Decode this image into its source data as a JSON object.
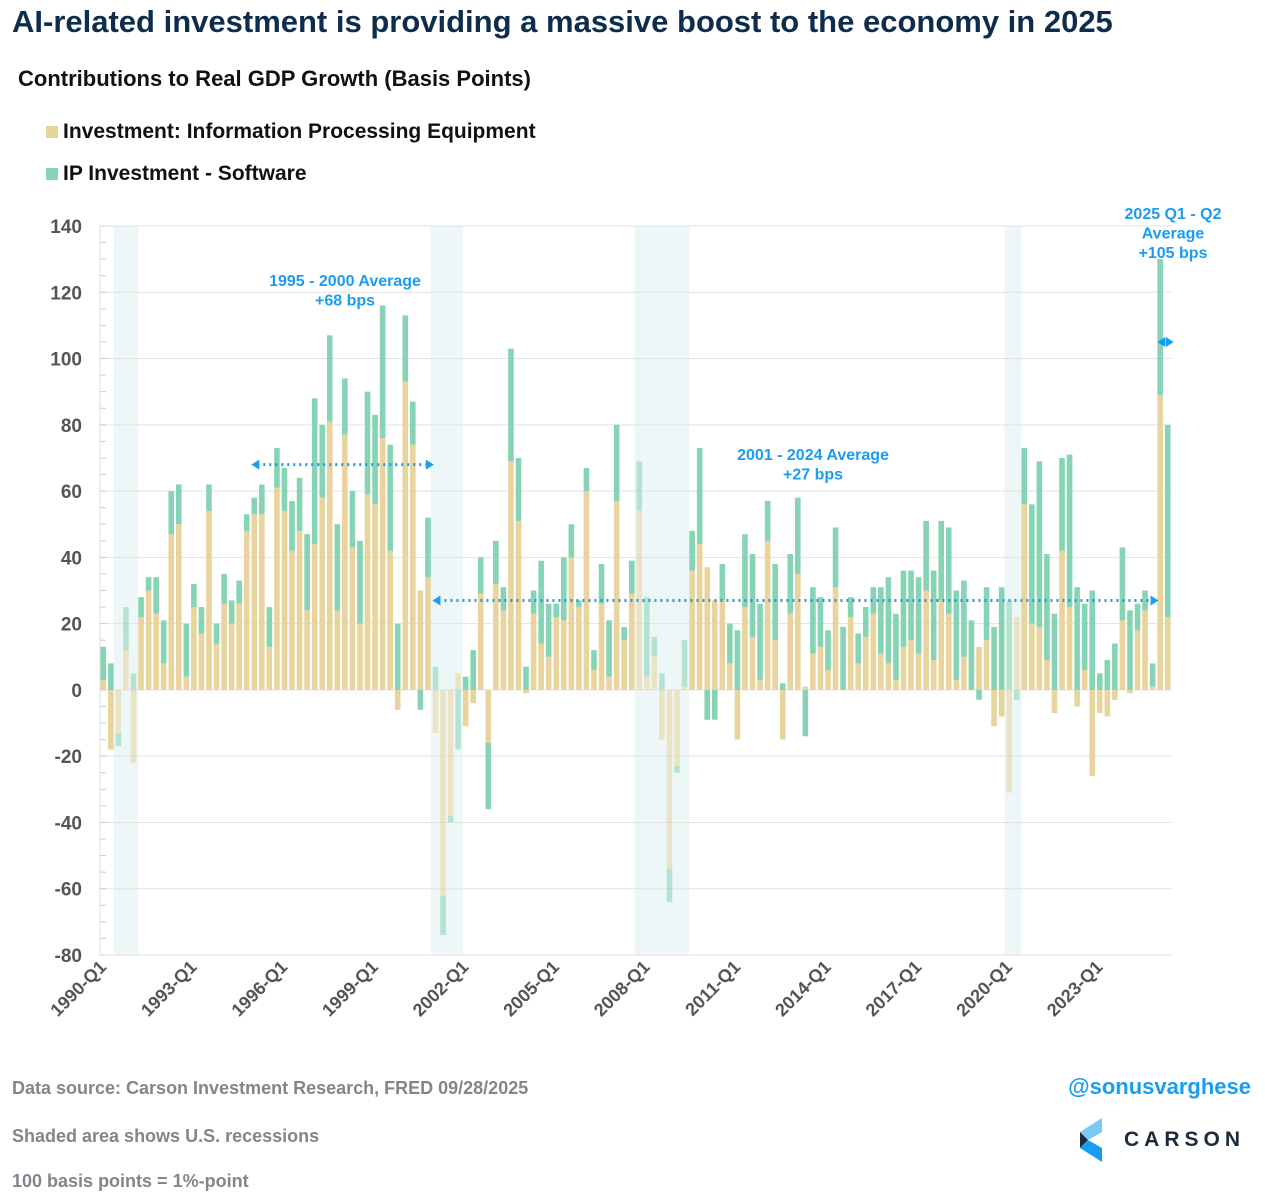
{
  "header": {
    "title": "AI-related investment is providing a massive boost to the economy in 2025",
    "subtitle": "Contributions to Real GDP Growth (Basis Points)"
  },
  "footer": {
    "source": "Data source: Carson Investment Research, FRED   09/28/2025",
    "shading_note": "Shaded area shows U.S. recessions",
    "unit_note": "100 basis points = 1%-point",
    "handle": "@sonusvarghese",
    "logo_text": "CARSON"
  },
  "colors": {
    "equipment": "#e8d49c",
    "software": "#86d4b4",
    "annotation": "#1a9cf0",
    "title": "#0e2d4d",
    "recession": "#eef7f7"
  },
  "chart_data": {
    "type": "bar",
    "stacked": true,
    "title": "Contributions to Real GDP Growth (Basis Points)",
    "ylim": [
      -80,
      140
    ],
    "yticks": [
      140,
      120,
      100,
      80,
      60,
      40,
      20,
      0,
      -20,
      -40,
      -60,
      -80
    ],
    "grid": true,
    "legend_placement": "top-left",
    "xtick_labels": [
      "1990-Q1",
      "1993-Q1",
      "1996-Q1",
      "1999-Q1",
      "2002-Q1",
      "2005-Q1",
      "2008-Q1",
      "2011-Q1",
      "2014-Q1",
      "2017-Q1",
      "2020-Q1",
      "2023-Q1"
    ],
    "categories": [
      "1990-Q1",
      "1990-Q2",
      "1990-Q3",
      "1990-Q4",
      "1991-Q1",
      "1991-Q2",
      "1991-Q3",
      "1991-Q4",
      "1992-Q1",
      "1992-Q2",
      "1992-Q3",
      "1992-Q4",
      "1993-Q1",
      "1993-Q2",
      "1993-Q3",
      "1993-Q4",
      "1994-Q1",
      "1994-Q2",
      "1994-Q3",
      "1994-Q4",
      "1995-Q1",
      "1995-Q2",
      "1995-Q3",
      "1995-Q4",
      "1996-Q1",
      "1996-Q2",
      "1996-Q3",
      "1996-Q4",
      "1997-Q1",
      "1997-Q2",
      "1997-Q3",
      "1997-Q4",
      "1998-Q1",
      "1998-Q2",
      "1998-Q3",
      "1998-Q4",
      "1999-Q1",
      "1999-Q2",
      "1999-Q3",
      "1999-Q4",
      "2000-Q1",
      "2000-Q2",
      "2000-Q3",
      "2000-Q4",
      "2001-Q1",
      "2001-Q2",
      "2001-Q3",
      "2001-Q4",
      "2002-Q1",
      "2002-Q2",
      "2002-Q3",
      "2002-Q4",
      "2003-Q1",
      "2003-Q2",
      "2003-Q3",
      "2003-Q4",
      "2004-Q1",
      "2004-Q2",
      "2004-Q3",
      "2004-Q4",
      "2005-Q1",
      "2005-Q2",
      "2005-Q3",
      "2005-Q4",
      "2006-Q1",
      "2006-Q2",
      "2006-Q3",
      "2006-Q4",
      "2007-Q1",
      "2007-Q2",
      "2007-Q3",
      "2007-Q4",
      "2008-Q1",
      "2008-Q2",
      "2008-Q3",
      "2008-Q4",
      "2009-Q1",
      "2009-Q2",
      "2009-Q3",
      "2009-Q4",
      "2010-Q1",
      "2010-Q2",
      "2010-Q3",
      "2010-Q4",
      "2011-Q1",
      "2011-Q2",
      "2011-Q3",
      "2011-Q4",
      "2012-Q1",
      "2012-Q2",
      "2012-Q3",
      "2012-Q4",
      "2013-Q1",
      "2013-Q2",
      "2013-Q3",
      "2013-Q4",
      "2014-Q1",
      "2014-Q2",
      "2014-Q3",
      "2014-Q4",
      "2015-Q1",
      "2015-Q2",
      "2015-Q3",
      "2015-Q4",
      "2016-Q1",
      "2016-Q2",
      "2016-Q3",
      "2016-Q4",
      "2017-Q1",
      "2017-Q2",
      "2017-Q3",
      "2017-Q4",
      "2018-Q1",
      "2018-Q2",
      "2018-Q3",
      "2018-Q4",
      "2019-Q1",
      "2019-Q2",
      "2019-Q3",
      "2019-Q4",
      "2020-Q1",
      "2020-Q2",
      "2020-Q3",
      "2020-Q4",
      "2021-Q1",
      "2021-Q2",
      "2021-Q3",
      "2021-Q4",
      "2022-Q1",
      "2022-Q2",
      "2022-Q3",
      "2022-Q4",
      "2023-Q1",
      "2023-Q2",
      "2023-Q3",
      "2023-Q4",
      "2024-Q1",
      "2024-Q2",
      "2024-Q3",
      "2024-Q4",
      "2025-Q1",
      "2025-Q2"
    ],
    "series": [
      {
        "name": "Investment: Information Processing Equipment",
        "color": "#e8d49c",
        "values": [
          3,
          -18,
          -13,
          12,
          -22,
          22,
          30,
          23,
          8,
          47,
          50,
          4,
          25,
          17,
          54,
          14,
          26,
          20,
          26,
          48,
          53,
          53,
          13,
          61,
          54,
          42,
          48,
          24,
          44,
          58,
          81,
          24,
          77,
          43,
          20,
          59,
          56,
          76,
          42,
          -6,
          93,
          74,
          30,
          34,
          -13,
          -62,
          -38,
          5,
          -11,
          -4,
          29,
          -16,
          32,
          24,
          69,
          51,
          -1,
          23,
          14,
          10,
          22,
          21,
          40,
          25,
          60,
          6,
          26,
          4,
          57,
          15,
          29,
          54,
          4,
          10,
          -15,
          -54,
          -23,
          1,
          36,
          44,
          37,
          27,
          27,
          8,
          -15,
          25,
          16,
          3,
          45,
          15,
          -15,
          23,
          35,
          1,
          11,
          13,
          6,
          31,
          0,
          22,
          8,
          16,
          23,
          11,
          8,
          3,
          13,
          15,
          11,
          30,
          9,
          27,
          23,
          3,
          10,
          0,
          13,
          15,
          -11,
          -8,
          -31,
          22,
          56,
          20,
          19,
          9,
          -7,
          42,
          25,
          -5,
          6,
          -26,
          -7,
          -8,
          -3,
          21,
          -1,
          18,
          24,
          1,
          89,
          22
        ]
      },
      {
        "name": "IP Investment - Software",
        "color": "#86d4b4",
        "values": [
          10,
          8,
          -4,
          13,
          5,
          6,
          4,
          11,
          13,
          13,
          12,
          16,
          7,
          8,
          8,
          6,
          9,
          7,
          7,
          5,
          5,
          9,
          12,
          12,
          13,
          15,
          16,
          23,
          44,
          22,
          26,
          26,
          17,
          17,
          25,
          31,
          27,
          40,
          32,
          20,
          20,
          13,
          -6,
          18,
          7,
          -12,
          -2,
          -18,
          4,
          12,
          11,
          -20,
          13,
          7,
          34,
          19,
          7,
          7,
          25,
          16,
          4,
          19,
          10,
          2,
          7,
          6,
          12,
          17,
          23,
          4,
          10,
          15,
          24,
          6,
          5,
          -10,
          -2,
          14,
          12,
          29,
          -9,
          -9,
          11,
          12,
          18,
          22,
          25,
          23,
          12,
          23,
          2,
          18,
          23,
          -14,
          20,
          15,
          12,
          18,
          19,
          6,
          9,
          9,
          8,
          20,
          26,
          20,
          23,
          21,
          23,
          21,
          27,
          24,
          26,
          27,
          23,
          21,
          -3,
          16,
          19,
          31,
          27,
          -3,
          17,
          36,
          50,
          32,
          23,
          28,
          46,
          31,
          20,
          30,
          5,
          9,
          14,
          22,
          24,
          8,
          6,
          7,
          41,
          58
        ]
      }
    ],
    "recessions": [
      [
        "1990-Q3",
        "1991-Q1"
      ],
      [
        "2001-Q1",
        "2001-Q4"
      ],
      [
        "2007-Q4",
        "2009-Q2"
      ],
      [
        "2020-Q1",
        "2020-Q2"
      ]
    ],
    "annotations": [
      {
        "lines": [
          "1995 - 2000 Average",
          "+68 bps"
        ],
        "value": 68,
        "from": "1995-Q1",
        "to": "2000-Q4"
      },
      {
        "lines": [
          "2001 - 2024 Average",
          "+27 bps"
        ],
        "value": 27,
        "from": "2001-Q1",
        "to": "2024-Q4"
      },
      {
        "lines": [
          "2025 Q1 - Q2",
          "Average",
          "+105 bps"
        ],
        "value": 105,
        "from": "2025-Q1",
        "to": "2025-Q2"
      }
    ]
  }
}
